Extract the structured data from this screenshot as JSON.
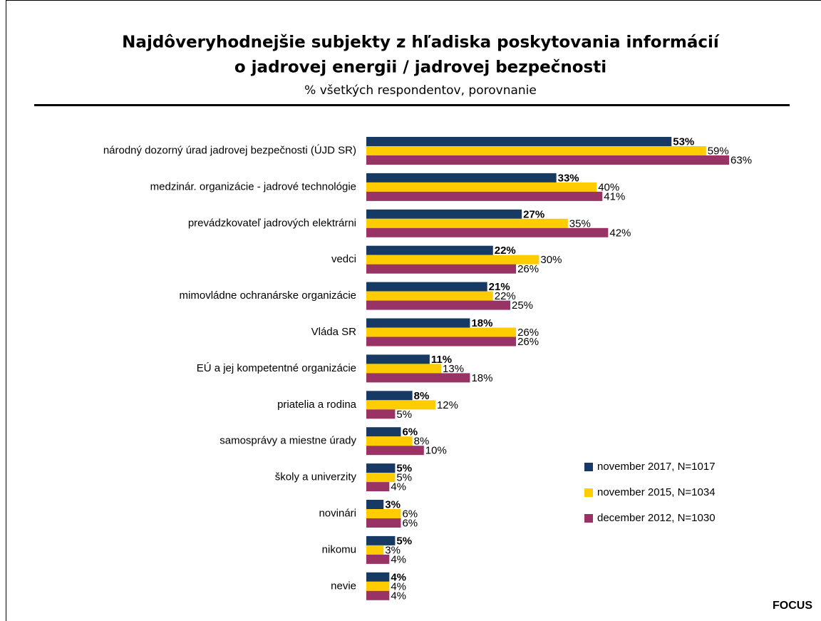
{
  "chart_data": {
    "type": "bar",
    "orientation": "horizontal",
    "title": [
      "Najdôveryhodnejšie subjekty z hľadiska poskytovania informácií",
      "o jadrovej energii / jadrovej bezpečnosti"
    ],
    "subtitle": "% všetkých respondentov, porovnanie",
    "source": "FOCUS",
    "categories": [
      "národný dozorný úrad jadrovej bezpečnosti (ÚJD SR)",
      "medzinár. organizácie - jadrové technológie",
      "prevádzkovateľ jadrových elektrárni",
      "vedci",
      "mimovládne ochranárske organizácie",
      "Vláda SR",
      "EÚ a jej kompetentné organizácie",
      "priatelia a rodina",
      "samosprávy a miestne úrady",
      "školy a univerzity",
      "novinári",
      "nikomu",
      "nevie"
    ],
    "series": [
      {
        "name": "november 2017, N=1017",
        "color": "#173a64",
        "values": [
          53,
          33,
          27,
          22,
          21,
          18,
          11,
          8,
          6,
          5,
          3,
          5,
          4
        ],
        "value_labels": [
          "53%",
          "33%",
          "27%",
          "22%",
          "21%",
          "18%",
          "11%",
          "8%",
          "6%",
          "5%",
          "3%",
          "5%",
          "4%"
        ]
      },
      {
        "name": "november 2015, N=1034",
        "color": "#ffcc00",
        "values": [
          59,
          40,
          35,
          30,
          22,
          26,
          13,
          12,
          8,
          5,
          6,
          3,
          4
        ],
        "value_labels": [
          "59%",
          "40%",
          "35%",
          "30%",
          "22%",
          "26%",
          "13%",
          "12%",
          "8%",
          "5%",
          "6%",
          "3%",
          "4%"
        ]
      },
      {
        "name": "december 2012, N=1030",
        "color": "#993366",
        "values": [
          63,
          41,
          42,
          26,
          25,
          26,
          18,
          5,
          10,
          4,
          6,
          4,
          4
        ],
        "value_labels": [
          "63%",
          "41%",
          "42%",
          "26%",
          "25%",
          "26%",
          "18%",
          "5%",
          "10%",
          "4%",
          "6%",
          "4%",
          "4%"
        ]
      }
    ],
    "legend": "lower right"
  }
}
